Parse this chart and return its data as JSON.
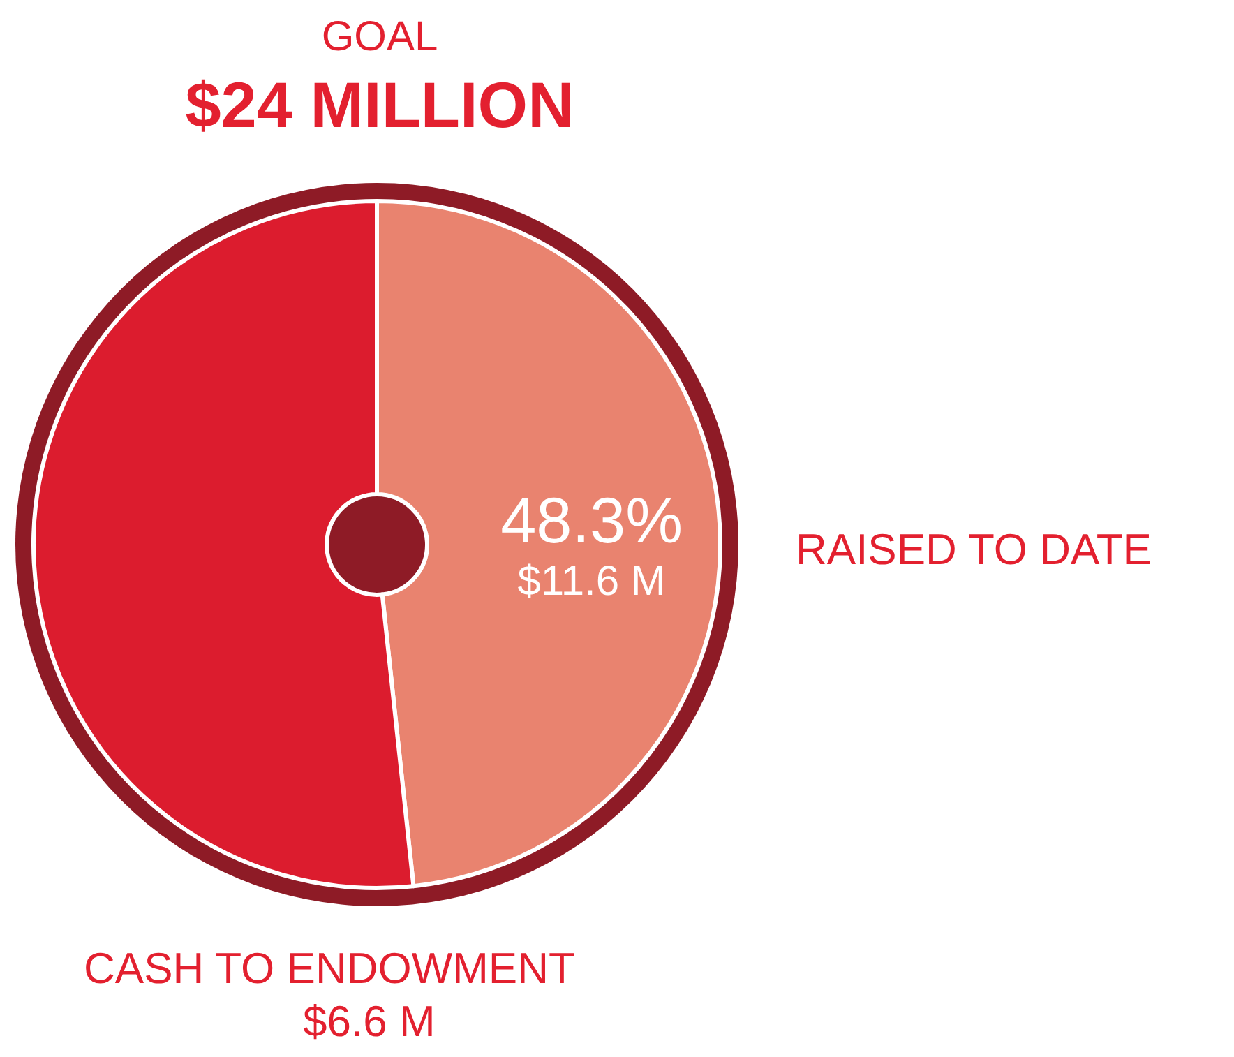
{
  "chart_data": {
    "type": "donut",
    "title": "GOAL",
    "subtitle": "$24 MILLION",
    "categories": [
      "RAISED TO DATE",
      null
    ],
    "values": [
      48.3,
      51.7
    ],
    "colors": [
      "#e9836f",
      "#dc1c2e"
    ],
    "value_labels": [
      "48.3%\n$11.6 M",
      null
    ],
    "annotations": [
      "CASH TO ENDOWMENT",
      "$6.6 M"
    ],
    "legend": false
  }
}
